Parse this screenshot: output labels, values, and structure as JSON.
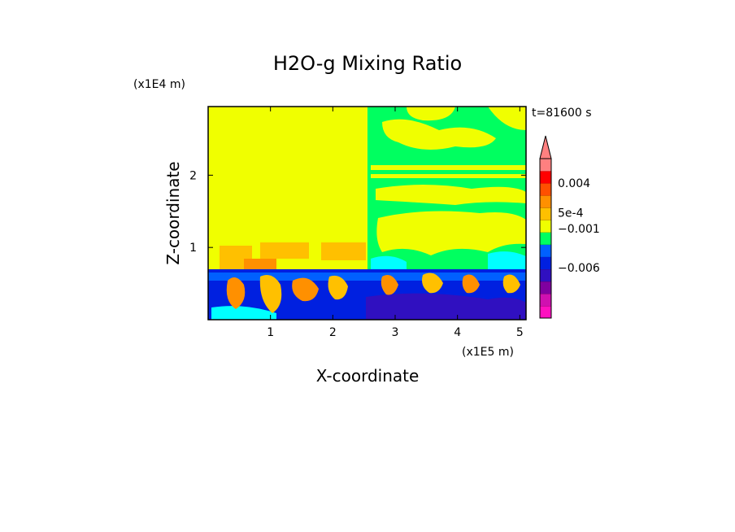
{
  "chart_data": {
    "type": "heatmap",
    "title": "H2O-g Mixing Ratio",
    "time_label": "t=81600 s",
    "xlabel": "X-coordinate",
    "ylabel": "Z-coordinate",
    "x_scale_label": "(x1E5 m)",
    "y_scale_label": "(x1E4 m)",
    "x_ticks": [
      1,
      2,
      3,
      4,
      5
    ],
    "y_ticks": [
      1,
      2
    ],
    "xlim": [
      0,
      5.1
    ],
    "ylim": [
      0,
      2.95
    ],
    "colorbar": {
      "colors": [
        "#ff10c0",
        "#d010b0",
        "#8000a0",
        "#3010c0",
        "#0020e0",
        "#0060ff",
        "#00ff60",
        "#f0ff00",
        "#ffc000",
        "#ff9000",
        "#ff5000",
        "#ff0000",
        "#ff8080"
      ],
      "labels": [
        {
          "text": "0.004",
          "level": 11
        },
        {
          "text": "5e-4",
          "level": 8.6
        },
        {
          "text": "−0.001",
          "level": 7.3
        },
        {
          "text": "−0.006",
          "level": 4.1
        }
      ],
      "extend": "max"
    },
    "regions": {
      "background": "#f0ff00",
      "upper_right_block": "#00ff60",
      "boundary_layer": "#0020e0"
    }
  }
}
